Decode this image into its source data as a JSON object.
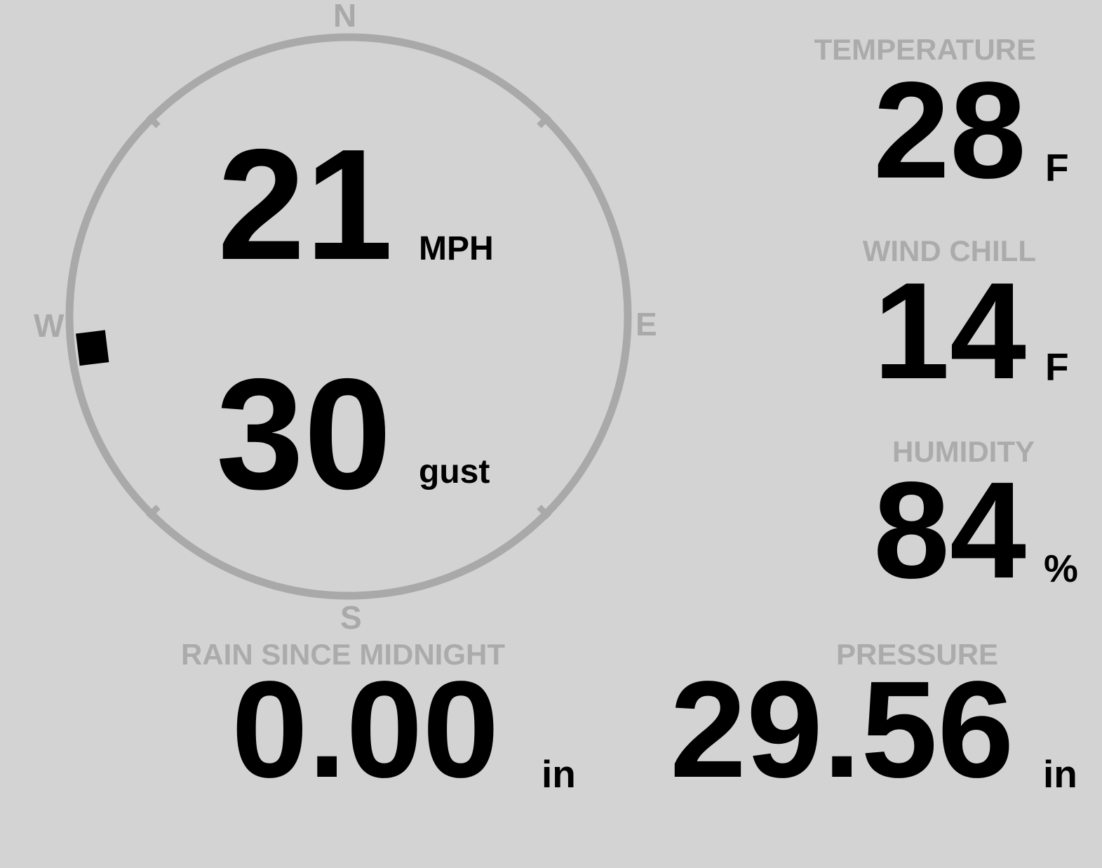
{
  "theme": {
    "background_color": "#d3d3d3",
    "dial_color": "#a9a9a9",
    "label_color": "#ababab",
    "value_color": "#000000"
  },
  "wind": {
    "compass": {
      "north": "N",
      "east": "E",
      "south": "S",
      "west": "W"
    },
    "speed": "21",
    "speed_unit": "MPH",
    "gust": "30",
    "gust_unit": "gust",
    "direction_degrees": 263
  },
  "readings": {
    "temperature": {
      "label": "TEMPERATURE",
      "value": "28",
      "unit": "F"
    },
    "wind_chill": {
      "label": "WIND CHILL",
      "value": "14",
      "unit": "F"
    },
    "humidity": {
      "label": "HUMIDITY",
      "value": "84",
      "unit": "%"
    },
    "rain": {
      "label": "RAIN SINCE MIDNIGHT",
      "value": "0.00",
      "unit": "in"
    },
    "pressure": {
      "label": "PRESSURE",
      "value": "29.56",
      "unit": "in"
    }
  }
}
